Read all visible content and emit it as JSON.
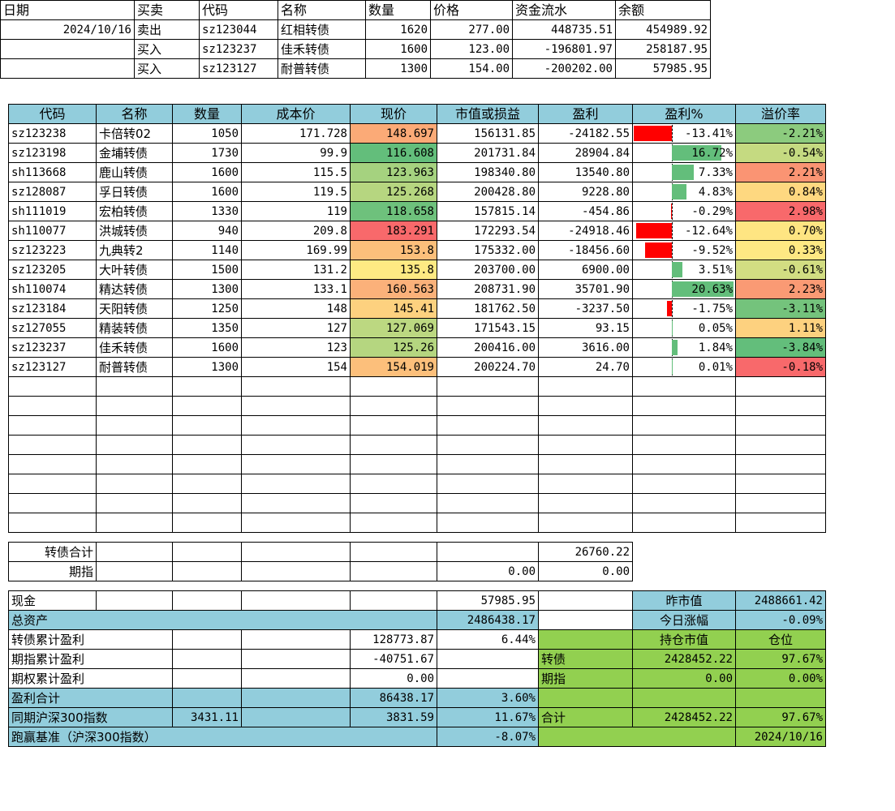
{
  "trade_table": {
    "headers": [
      "日期",
      "买卖",
      "代码",
      "名称",
      "数量",
      "价格",
      "资金流水",
      "余额"
    ],
    "rows": [
      {
        "date": "2024/10/16",
        "side": "卖出",
        "code": "sz123044",
        "name": "红相转债",
        "qty": "1620",
        "price": "277.00",
        "flow": "448735.51",
        "balance": "454989.92"
      },
      {
        "date": "",
        "side": "买入",
        "code": "sz123237",
        "name": "佳禾转债",
        "qty": "1600",
        "price": "123.00",
        "flow": "-196801.97",
        "balance": "258187.95"
      },
      {
        "date": "",
        "side": "买入",
        "code": "sz123127",
        "name": "耐普转债",
        "qty": "1300",
        "price": "154.00",
        "flow": "-200202.00",
        "balance": "57985.95"
      }
    ]
  },
  "holdings_table": {
    "headers": [
      "代码",
      "名称",
      "数量",
      "成本价",
      "现价",
      "市值或损益",
      "盈利",
      "盈利%",
      "溢价率"
    ],
    "rows": [
      {
        "code": "sz123238",
        "name": "卡倍转02",
        "qty": "1050",
        "cost": "171.728",
        "price": "148.697",
        "price_color": "#fbaa77",
        "value": "156131.85",
        "profit": "-24182.55",
        "pct": "-13.41%",
        "pct_value": -13.41,
        "premium": "-2.21%",
        "premium_color": "#8ccb7e"
      },
      {
        "code": "sz123198",
        "name": "金埔转债",
        "qty": "1730",
        "cost": "99.9",
        "price": "116.608",
        "price_color": "#63be7b",
        "value": "201731.84",
        "profit": "28904.84",
        "pct": "16.72%",
        "pct_value": 16.72,
        "premium": "-0.54%",
        "premium_color": "#c5da81"
      },
      {
        "code": "sh113668",
        "name": "鹿山转债",
        "qty": "1600",
        "cost": "115.5",
        "price": "123.963",
        "price_color": "#a5d27f",
        "value": "198340.80",
        "profit": "13540.80",
        "pct": "7.33%",
        "pct_value": 7.33,
        "premium": "2.21%",
        "premium_color": "#fa9473"
      },
      {
        "code": "sz128087",
        "name": "孚日转债",
        "qty": "1600",
        "cost": "119.5",
        "price": "125.268",
        "price_color": "#b6d680",
        "value": "200428.80",
        "profit": "9228.80",
        "pct": "4.83%",
        "pct_value": 4.83,
        "premium": "0.84%",
        "premium_color": "#fed880"
      },
      {
        "code": "sh111019",
        "name": "宏柏转债",
        "qty": "1330",
        "cost": "119",
        "price": "118.658",
        "price_color": "#6ec17c",
        "value": "157815.14",
        "profit": "-454.86",
        "pct": "-0.29%",
        "pct_value": -0.29,
        "premium": "2.98%",
        "premium_color": "#f8696b"
      },
      {
        "code": "sh110077",
        "name": "洪城转债",
        "qty": "940",
        "cost": "209.8",
        "price": "183.291",
        "price_color": "#f8696b",
        "value": "172293.54",
        "profit": "-24918.46",
        "pct": "-12.64%",
        "pct_value": -12.64,
        "premium": "0.70%",
        "premium_color": "#fee582"
      },
      {
        "code": "sz123223",
        "name": "九典转2",
        "qty": "1140",
        "cost": "169.99",
        "price": "153.8",
        "price_color": "#fcbf7b",
        "value": "175332.00",
        "profit": "-18456.60",
        "pct": "-9.52%",
        "pct_value": -9.52,
        "premium": "0.33%",
        "premium_color": "#fee883"
      },
      {
        "code": "sz123205",
        "name": "大叶转债",
        "qty": "1500",
        "cost": "131.2",
        "price": "135.8",
        "price_color": "#feea83",
        "value": "203700.00",
        "profit": "6900.00",
        "pct": "3.51%",
        "pct_value": 3.51,
        "premium": "-0.61%",
        "premium_color": "#d2dd82"
      },
      {
        "code": "sh110074",
        "name": "精达转债",
        "qty": "1300",
        "cost": "133.1",
        "price": "160.563",
        "price_color": "#fbb17a",
        "value": "208731.90",
        "profit": "35701.90",
        "pct": "20.63%",
        "pct_value": 20.63,
        "premium": "2.23%",
        "premium_color": "#fa9a74"
      },
      {
        "code": "sz123184",
        "name": "天阳转债",
        "qty": "1250",
        "cost": "148",
        "price": "145.41",
        "price_color": "#fdd17f",
        "value": "181762.50",
        "profit": "-3237.50",
        "pct": "-1.75%",
        "pct_value": -1.75,
        "premium": "-3.11%",
        "premium_color": "#74c37c"
      },
      {
        "code": "sz127055",
        "name": "精装转债",
        "qty": "1350",
        "cost": "127",
        "price": "127.069",
        "price_color": "#bcd881",
        "value": "171543.15",
        "profit": "93.15",
        "pct": "0.05%",
        "pct_value": 0.05,
        "premium": "1.11%",
        "premium_color": "#fdd17f"
      },
      {
        "code": "sz123237",
        "name": "佳禾转债",
        "qty": "1600",
        "cost": "123",
        "price": "125.26",
        "price_color": "#b5d680",
        "value": "200416.00",
        "profit": "3616.00",
        "pct": "1.84%",
        "pct_value": 1.84,
        "premium": "-3.84%",
        "premium_color": "#63be7b"
      },
      {
        "code": "sz123127",
        "name": "耐普转债",
        "qty": "1300",
        "cost": "154",
        "price": "154.019",
        "price_color": "#fcbf7b",
        "value": "200224.70",
        "profit": "24.70",
        "pct": "0.01%",
        "pct_value": 0.01,
        "premium": "-0.18%",
        "premium_color": "#f8696b"
      }
    ],
    "empty_rows": 8,
    "bar_scale_max": 21
  },
  "subtotals": {
    "bond_total_label": "转债合计",
    "bond_total_profit": "26760.22",
    "futures_label": "期指",
    "futures_value": "0.00",
    "futures_profit": "0.00"
  },
  "summary": {
    "cash_label": "现金",
    "cash_value": "57985.95",
    "prev_value_label": "昨市值",
    "prev_value": "2488661.42",
    "total_assets_label": "总资产",
    "total_assets": "2486438.17",
    "today_change_label": "今日涨幅",
    "today_change": "-0.09%",
    "bond_cum_label": "转债累计盈利",
    "bond_cum_value": "128773.87",
    "bond_cum_pct": "6.44%",
    "position_value_label": "持仓市值",
    "position_label": "仓位",
    "futures_cum_label": "期指累计盈利",
    "futures_cum_value": "-40751.67",
    "bond_row_label": "转债",
    "bond_position_value": "2428452.22",
    "bond_position_pct": "97.67%",
    "option_cum_label": "期权累计盈利",
    "option_cum_value": "0.00",
    "futures_row_label": "期指",
    "futures_position_value": "0.00",
    "futures_position_pct": "0.00%",
    "profit_total_label": "盈利合计",
    "profit_total_value": "86438.17",
    "profit_total_pct": "3.60%",
    "hs300_label": "同期沪深300指数",
    "hs300_start": "3431.11",
    "hs300_now": "3831.59",
    "hs300_pct": "11.67%",
    "sum_label": "合计",
    "sum_value": "2428452.22",
    "sum_pct": "97.67%",
    "benchmark_label": "跑赢基准（沪深300指数）",
    "benchmark_pct": "-8.07%",
    "date": "2024/10/16"
  },
  "colors": {
    "header_blue": "#92cddc",
    "panel_green": "#92d050",
    "bar_positive": "#63be7b",
    "bar_negative": "#ff0000"
  }
}
